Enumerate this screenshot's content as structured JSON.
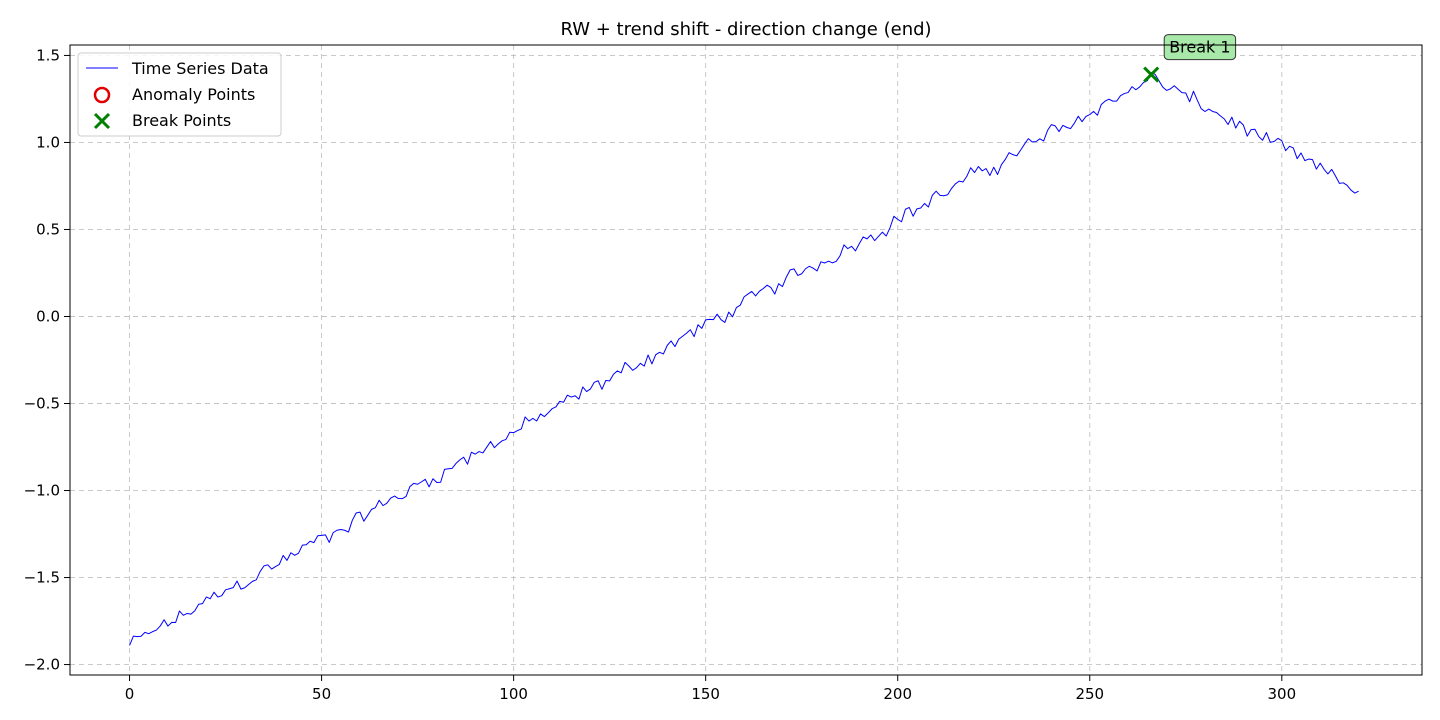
{
  "chart_data": {
    "type": "line",
    "title": "RW + trend shift - direction change (end)",
    "xlabel": "",
    "ylabel": "",
    "xlim": [
      -15.5,
      336.5
    ],
    "ylim": [
      -2.06,
      1.56
    ],
    "xticks": [
      0,
      50,
      100,
      150,
      200,
      250,
      300
    ],
    "xtick_labels": [
      "0",
      "50",
      "100",
      "150",
      "200",
      "250",
      "300"
    ],
    "yticks": [
      -2.0,
      -1.5,
      -1.0,
      -0.5,
      0.0,
      0.5,
      1.0,
      1.5
    ],
    "ytick_labels": [
      "−2.0",
      "−1.5",
      "−1.0",
      "−0.5",
      "0.0",
      "0.5",
      "1.0",
      "1.5"
    ],
    "grid": true,
    "legend_position": "top-left",
    "series": [
      {
        "name": "Time Series Data",
        "kind": "line",
        "color": "#0000ff",
        "trend_start": [
          0,
          -1.89
        ],
        "trend_peak": [
          266,
          1.37
        ],
        "trend_end": [
          320,
          0.72
        ]
      }
    ],
    "anomaly_points": {
      "name": "Anomaly Points",
      "color": "#e00000",
      "points": []
    },
    "break_points": {
      "name": "Break Points",
      "color": "#008000",
      "points": [
        [
          266,
          1.39
        ]
      ]
    },
    "annotations": [
      {
        "text": "Break 1",
        "x": 266,
        "y": 1.39,
        "box_color": "#a8e8a8"
      }
    ]
  }
}
